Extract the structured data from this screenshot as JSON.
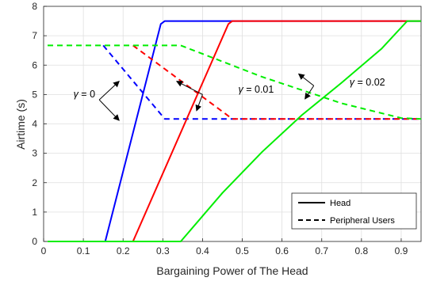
{
  "chart_data": {
    "type": "line",
    "xlabel": "Bargaining Power of The Head",
    "ylabel": "Airtime (s)",
    "xlim": [
      0,
      0.95
    ],
    "ylim": [
      0,
      8
    ],
    "xticks": [
      0,
      0.1,
      0.2,
      0.3,
      0.4,
      0.5,
      0.6,
      0.7,
      0.8,
      0.9
    ],
    "xtick_labels": [
      "0",
      "0.1",
      "0.2",
      "0.3",
      "0.4",
      "0.5",
      "0.6",
      "0.7",
      "0.8",
      "0.9"
    ],
    "yticks": [
      0,
      1,
      2,
      3,
      4,
      5,
      6,
      7,
      8
    ],
    "ytick_labels": [
      "0",
      "1",
      "2",
      "3",
      "4",
      "5",
      "6",
      "7",
      "8"
    ],
    "grid": true,
    "legend_position": "bottom-right",
    "legend": [
      {
        "label": "Head",
        "style": "solid"
      },
      {
        "label": "Peripheral Users",
        "style": "dashed"
      }
    ],
    "series": [
      {
        "gamma": "0",
        "role": "Head",
        "color": "#0000ff",
        "style": "solid",
        "x": [
          0.01,
          0.155,
          0.295,
          0.305,
          0.95
        ],
        "y": [
          0,
          0,
          7.4,
          7.5,
          7.5
        ]
      },
      {
        "gamma": "0",
        "role": "Peripheral Users",
        "color": "#0000ff",
        "style": "dashed",
        "x": [
          0.15,
          0.305,
          0.95
        ],
        "y": [
          6.67,
          4.17,
          4.17
        ]
      },
      {
        "gamma": "0.01",
        "role": "Head",
        "color": "#ff0000",
        "style": "solid",
        "x": [
          0.01,
          0.225,
          0.465,
          0.475,
          0.95
        ],
        "y": [
          0,
          0,
          7.4,
          7.5,
          7.5
        ]
      },
      {
        "gamma": "0.01",
        "role": "Peripheral Users",
        "color": "#ff0000",
        "style": "dashed",
        "x": [
          0.225,
          0.475,
          0.95
        ],
        "y": [
          6.67,
          4.17,
          4.17
        ]
      },
      {
        "gamma": "0.02",
        "role": "Head",
        "color": "#00ee00",
        "style": "solid",
        "x": [
          0.01,
          0.345,
          0.45,
          0.55,
          0.65,
          0.75,
          0.85,
          0.915,
          0.95
        ],
        "y": [
          0,
          0,
          1.65,
          3.05,
          4.3,
          5.4,
          6.55,
          7.5,
          7.5
        ]
      },
      {
        "gamma": "0.02",
        "role": "Peripheral Users",
        "color": "#00ee00",
        "style": "dashed",
        "x": [
          0.01,
          0.3,
          0.345,
          0.55,
          0.75,
          0.9,
          0.95
        ],
        "y": [
          6.67,
          6.67,
          6.67,
          5.6,
          4.7,
          4.2,
          4.17
        ]
      }
    ],
    "annotations": [
      {
        "text": "γ = 0",
        "symbol": "γ",
        "equals": "= 0"
      },
      {
        "text": "γ = 0.01",
        "symbol": "γ",
        "equals": "= 0.01"
      },
      {
        "text": "γ = 0.02",
        "symbol": "γ",
        "equals": "= 0.02"
      }
    ]
  }
}
